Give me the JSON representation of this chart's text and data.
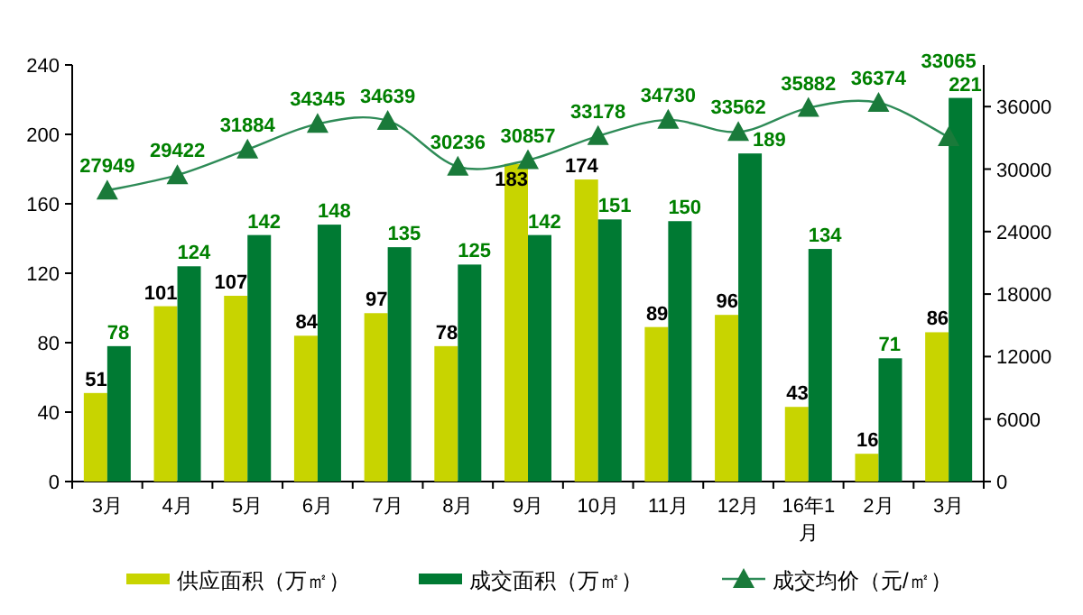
{
  "chart_data": {
    "type": "bar",
    "categories": [
      "3月",
      "4月",
      "5月",
      "6月",
      "7月",
      "8月",
      "9月",
      "10月",
      "11月",
      "12月",
      "16年1月",
      "2月",
      "3月"
    ],
    "series": [
      {
        "name": "供应面积（万㎡）",
        "color": "#c8d400",
        "values": [
          51,
          101,
          107,
          84,
          97,
          78,
          183,
          174,
          89,
          96,
          43,
          16,
          86
        ]
      },
      {
        "name": "成交面积（万㎡）",
        "color": "#007a33",
        "values": [
          78,
          124,
          142,
          148,
          135,
          125,
          142,
          151,
          150,
          189,
          134,
          71,
          221
        ]
      },
      {
        "name": "成交均价（元/㎡）",
        "type": "line",
        "axis": "y2",
        "color": "#2e8b57",
        "values": [
          27949,
          29422,
          31884,
          34345,
          34639,
          30236,
          30857,
          33178,
          34730,
          33562,
          35882,
          36374,
          33065
        ]
      }
    ],
    "ylim": [
      0,
      240
    ],
    "yticks": [
      0,
      40,
      80,
      120,
      160,
      200,
      240
    ],
    "y2lim": [
      0,
      40000
    ],
    "y2ticks": [
      0,
      6000,
      12000,
      18000,
      24000,
      30000,
      36000
    ],
    "data_labels": true,
    "marker": "triangle",
    "legend": "bottom",
    "grid": false
  }
}
